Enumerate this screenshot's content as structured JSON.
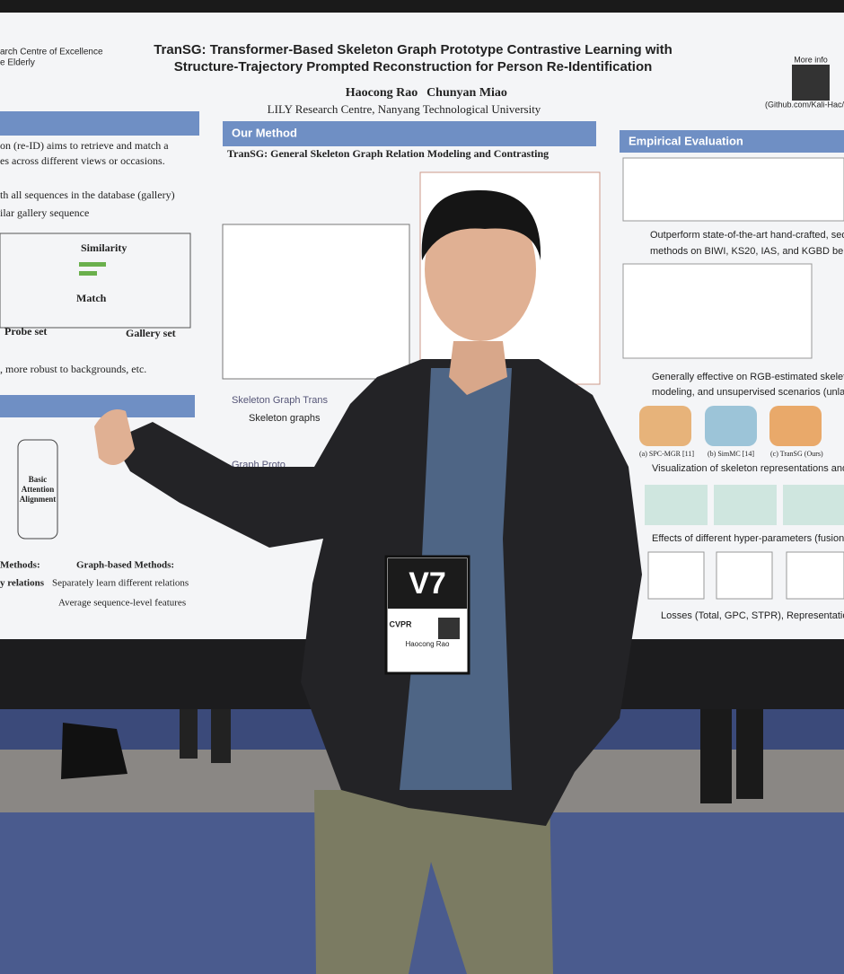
{
  "poster": {
    "header_left": [
      "arch Centre of Excellence",
      "e Elderly"
    ],
    "title": [
      "TranSG: Transformer-Based Skeleton Graph Prototype Contrastive Learning with",
      "Structure-Trajectory Prompted Reconstruction for Person Re-Identification"
    ],
    "authors": [
      "Haocong Rao",
      "Chunyan Miao"
    ],
    "affiliation": "LILY Research Centre, Nanyang Technological University",
    "more_info": "More info",
    "link": "(Github.com/Kali-Hac/Tra",
    "left_column": {
      "lines": [
        "on (re-ID) aims to retrieve and match a",
        "es across different views or occasions.",
        "th all sequences in the database (gallery)",
        "ilar gallery sequence",
        ", more robust to backgrounds, etc."
      ],
      "figure_labels": [
        "Similarity",
        "Match",
        "Probe set",
        "Gallery set"
      ],
      "box_label": [
        "Basic",
        "Attention",
        "Alignment"
      ],
      "bottom": [
        "Methods:",
        "Graph-based Methods:",
        "y relations",
        "Separately learn different relations",
        "Average sequence-level features"
      ]
    },
    "method": {
      "heading": "Our Method",
      "subtitle": "TranSG: General Skeleton Graph Relation Modeling and Contrasting",
      "items": [
        "Skeleton Graph Trans",
        "Skeleton graphs",
        "Graph Proto",
        "Graph"
      ]
    },
    "evaluation": {
      "heading": "Empirical Evaluation",
      "points": [
        "Outperform state-of-the-art hand-crafted, seq",
        "methods on BIWI, KS20, IAS, and KGBD ber",
        "Generally effective on RGB-estimated skelet",
        "modeling, and unsupervised scenarios (unla",
        "Visualization of skeleton representations and",
        "Effects of different hyper-parameters (fusion",
        "Losses (Total, GPC, STPR), Representation"
      ],
      "figure_labels": [
        "(a) SPC-MGR [11]",
        "(b) SimMC [14]",
        "(c) TranSG (Ours)"
      ]
    }
  },
  "badge": {
    "logo": "V7",
    "event": "CVPR",
    "name": "Haocong Rao"
  }
}
